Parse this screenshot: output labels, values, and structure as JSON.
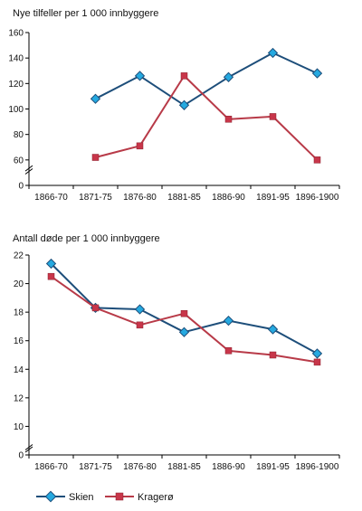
{
  "colors": {
    "skien": "#1d4e7a",
    "skien_marker": "#25a9e0",
    "kragero": "#b83a48",
    "kragero_marker": "#c8364a",
    "axis": "#000000"
  },
  "chart_data": [
    {
      "type": "line",
      "title": "Nye tilfeller per 1 000 innbyggere",
      "categories": [
        "1866-70",
        "1871-75",
        "1876-80",
        "1881-85",
        "1886-90",
        "1891-95",
        "1896-1900"
      ],
      "ylim": [
        0,
        160
      ],
      "yticks": [
        "0",
        "60",
        "80",
        "100",
        "120",
        "140",
        "160"
      ],
      "yticks_values": [
        0,
        60,
        80,
        100,
        120,
        140,
        160
      ],
      "series": [
        {
          "name": "Skien",
          "values": [
            null,
            108,
            126,
            103,
            125,
            144,
            128
          ]
        },
        {
          "name": "Kragerø",
          "values": [
            null,
            62,
            71,
            126,
            92,
            94,
            60
          ]
        }
      ]
    },
    {
      "type": "line",
      "title": "Antall døde per 1 000 innbyggere",
      "categories": [
        "1866-70",
        "1871-75",
        "1876-80",
        "1881-85",
        "1886-90",
        "1891-95",
        "1896-1900"
      ],
      "ylim": [
        0,
        22
      ],
      "yticks": [
        "0",
        "10",
        "12",
        "14",
        "16",
        "18",
        "20",
        "22"
      ],
      "yticks_values": [
        0,
        10,
        12,
        14,
        16,
        18,
        20,
        22
      ],
      "series": [
        {
          "name": "Skien",
          "values": [
            21.4,
            18.3,
            18.2,
            16.6,
            17.4,
            16.8,
            15.1
          ]
        },
        {
          "name": "Kragerø",
          "values": [
            20.5,
            18.3,
            17.1,
            17.9,
            15.3,
            15.0,
            14.5
          ]
        }
      ]
    }
  ],
  "legend": {
    "items": [
      "Skien",
      "Kragerø"
    ]
  }
}
